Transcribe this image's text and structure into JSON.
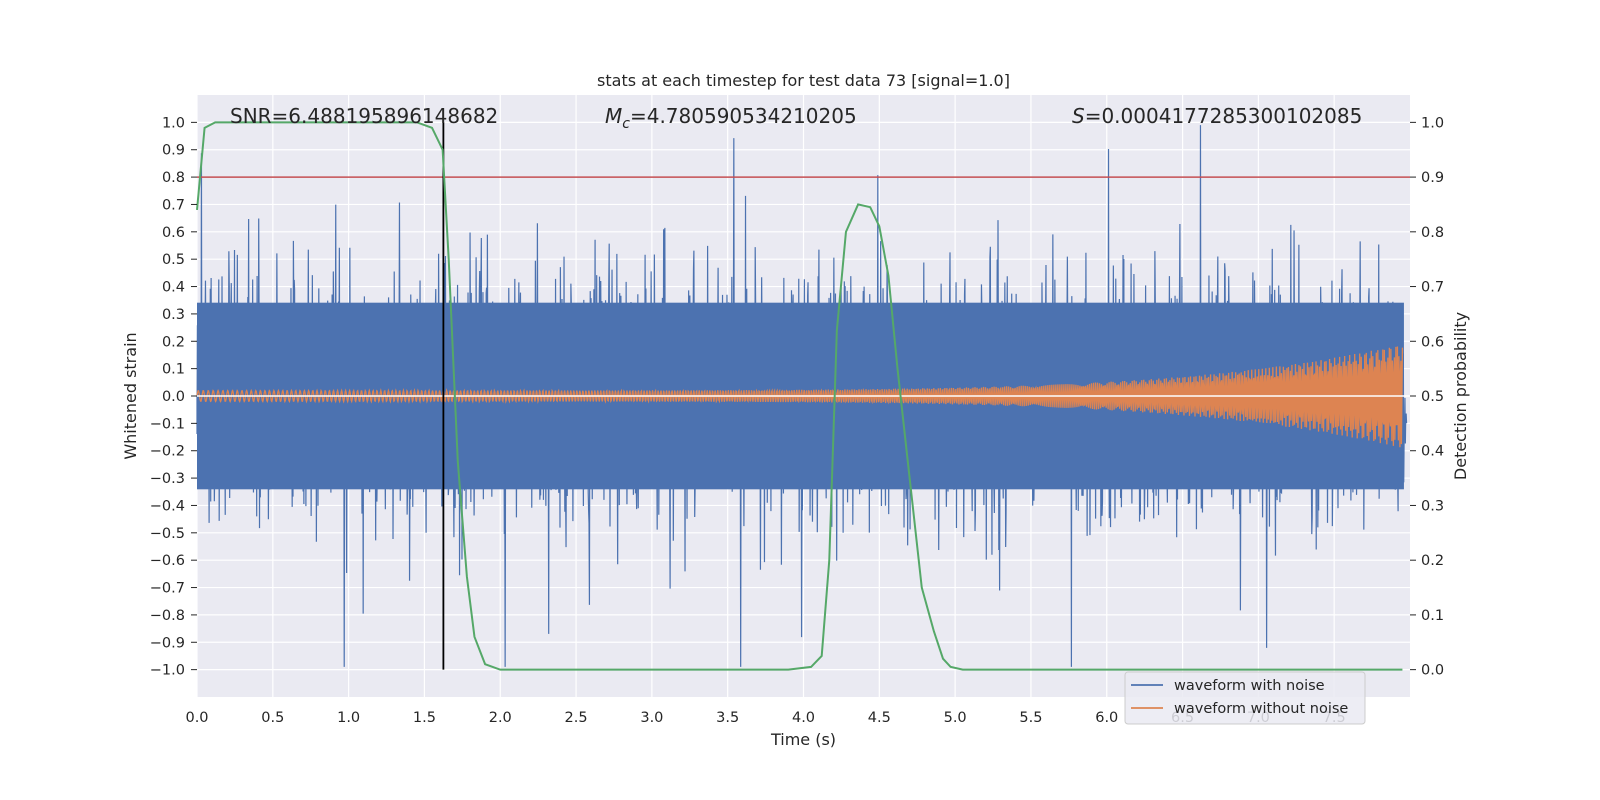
{
  "chart_data": {
    "type": "line",
    "title": "stats at each timestep for test data 73 [signal=1.0]",
    "xlabel": "Time (s)",
    "ylabel": "Whitened strain",
    "y2label": "Detection probability",
    "xlim": [
      0.0,
      8.0
    ],
    "ylim": [
      -1.1,
      1.1
    ],
    "y2lim": [
      -0.05,
      1.05
    ],
    "grid": true,
    "x_ticks": [
      "0.0",
      "0.5",
      "1.0",
      "1.5",
      "2.0",
      "2.5",
      "3.0",
      "3.5",
      "4.0",
      "4.5",
      "5.0",
      "5.5",
      "6.0",
      "6.5",
      "7.0",
      "7.5"
    ],
    "y_ticks": [
      "1.0",
      "0.9",
      "0.8",
      "0.7",
      "0.6",
      "0.5",
      "0.4",
      "0.3",
      "0.2",
      "0.1",
      "0.0",
      "−0.1",
      "−0.2",
      "−0.3",
      "−0.4",
      "−0.5",
      "−0.6",
      "−0.7",
      "−0.8",
      "−0.9",
      "−1.0"
    ],
    "y2_ticks": [
      "1.0",
      "0.9",
      "0.8",
      "0.7",
      "0.6",
      "0.5",
      "0.4",
      "0.3",
      "0.2",
      "0.1",
      "0.0"
    ],
    "annotations": {
      "snr": "SNR=6.488195896148682",
      "mc_symbol": "M",
      "mc_sub": "c",
      "mc_value": "=4.780590534210205",
      "s_symbol": "S",
      "s_value": "=0.0004177285300102085"
    },
    "threshold": {
      "value": 0.9,
      "axis": "right",
      "color": "#c44e52"
    },
    "event_time": 1.625,
    "series": [
      {
        "name": "waveform with noise",
        "color": "#4c72b0",
        "axis": "left",
        "envelope": 0.55
      },
      {
        "name": "waveform without noise",
        "color": "#dd8452",
        "axis": "left",
        "amplitude_start": 0.02,
        "amplitude_end": 0.19
      },
      {
        "name": "detection probability",
        "color": "#55a868",
        "axis": "right",
        "x": [
          0.0,
          0.05,
          0.12,
          0.3,
          0.6,
          1.0,
          1.3,
          1.45,
          1.55,
          1.62,
          1.66,
          1.72,
          1.78,
          1.83,
          1.9,
          2.0,
          2.5,
          3.0,
          3.5,
          3.9,
          4.05,
          4.12,
          4.17,
          4.22,
          4.28,
          4.36,
          4.44,
          4.5,
          4.56,
          4.62,
          4.7,
          4.78,
          4.86,
          4.92,
          4.97,
          5.05,
          5.2,
          5.5,
          6.0,
          6.5,
          7.0,
          7.5,
          7.95
        ],
        "values": [
          0.84,
          0.99,
          1.0,
          1.0,
          1.0,
          1.0,
          1.0,
          1.0,
          0.99,
          0.95,
          0.75,
          0.38,
          0.17,
          0.06,
          0.01,
          0.0,
          0.0,
          0.0,
          0.0,
          0.0,
          0.005,
          0.025,
          0.2,
          0.62,
          0.8,
          0.85,
          0.845,
          0.81,
          0.72,
          0.55,
          0.35,
          0.15,
          0.07,
          0.02,
          0.005,
          0.0,
          0.0,
          0.0,
          0.0,
          0.0,
          0.0,
          0.0,
          0.0
        ]
      }
    ],
    "legend": {
      "position": "bottom-right",
      "entries": [
        "waveform with noise",
        "waveform without noise"
      ]
    }
  }
}
